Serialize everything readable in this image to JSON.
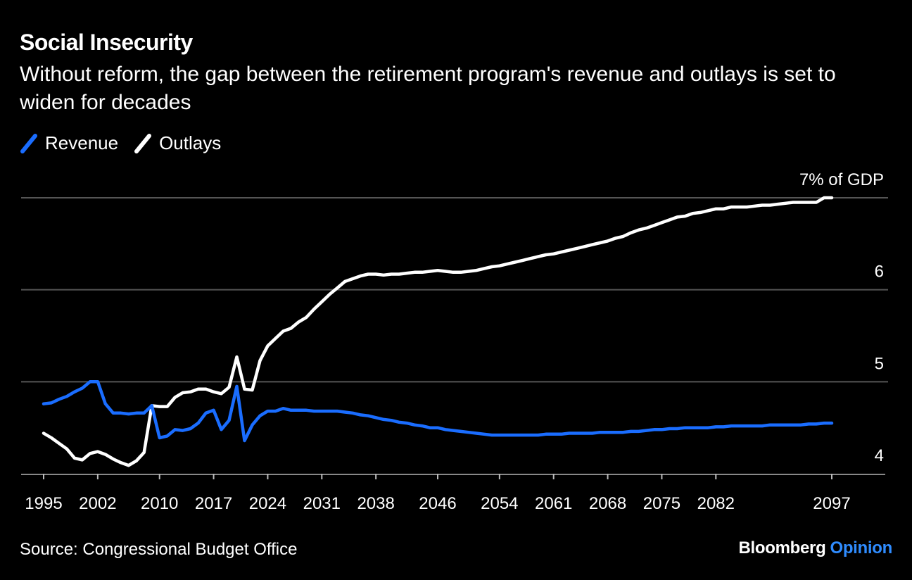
{
  "title": "Social Insecurity",
  "subtitle": "Without reform, the gap between the retirement program's revenue and outlays is set to widen for decades",
  "source": "Source: Congressional Budget Office",
  "brand": {
    "main": "Bloomberg",
    "sub": "Opinion"
  },
  "colors": {
    "background": "#000000",
    "revenue": "#1a6dff",
    "outlays": "#ffffff",
    "grid": "#555555",
    "brand_accent": "#2f8cff"
  },
  "chart_data": {
    "type": "line",
    "title": "Social Insecurity",
    "xlabel": "",
    "ylabel": "",
    "ylim": [
      4,
      7
    ],
    "y_ticks": [
      {
        "value": 4,
        "label": "4"
      },
      {
        "value": 5,
        "label": "5"
      },
      {
        "value": 6,
        "label": "6"
      },
      {
        "value": 7,
        "label": "7% of GDP"
      }
    ],
    "x_ticks": [
      "1995",
      "2002",
      "2010",
      "2017",
      "2024",
      "2031",
      "2038",
      "2046",
      "2054",
      "2061",
      "2068",
      "2075",
      "2082",
      "2097"
    ],
    "grid": true,
    "legend": "top-left",
    "series": [
      {
        "name": "Revenue",
        "color": "#1a6dff",
        "points": [
          [
            1995,
            4.76
          ],
          [
            1996,
            4.77
          ],
          [
            1997,
            4.81
          ],
          [
            1998,
            4.84
          ],
          [
            1999,
            4.89
          ],
          [
            2000,
            4.93
          ],
          [
            2001,
            5.0
          ],
          [
            2002,
            5.0
          ],
          [
            2003,
            4.76
          ],
          [
            2004,
            4.66
          ],
          [
            2005,
            4.66
          ],
          [
            2006,
            4.65
          ],
          [
            2007,
            4.66
          ],
          [
            2008,
            4.66
          ],
          [
            2009,
            4.74
          ],
          [
            2010,
            4.39
          ],
          [
            2011,
            4.41
          ],
          [
            2012,
            4.48
          ],
          [
            2013,
            4.47
          ],
          [
            2014,
            4.49
          ],
          [
            2015,
            4.55
          ],
          [
            2016,
            4.66
          ],
          [
            2017,
            4.69
          ],
          [
            2018,
            4.48
          ],
          [
            2019,
            4.58
          ],
          [
            2020,
            4.95
          ],
          [
            2021,
            4.36
          ],
          [
            2022,
            4.53
          ],
          [
            2023,
            4.63
          ],
          [
            2024,
            4.68
          ],
          [
            2025,
            4.68
          ],
          [
            2026,
            4.71
          ],
          [
            2027,
            4.69
          ],
          [
            2028,
            4.69
          ],
          [
            2029,
            4.69
          ],
          [
            2030,
            4.68
          ],
          [
            2031,
            4.68
          ],
          [
            2032,
            4.68
          ],
          [
            2033,
            4.68
          ],
          [
            2034,
            4.67
          ],
          [
            2035,
            4.66
          ],
          [
            2036,
            4.64
          ],
          [
            2037,
            4.63
          ],
          [
            2038,
            4.61
          ],
          [
            2039,
            4.59
          ],
          [
            2040,
            4.58
          ],
          [
            2041,
            4.56
          ],
          [
            2042,
            4.55
          ],
          [
            2043,
            4.53
          ],
          [
            2044,
            4.52
          ],
          [
            2045,
            4.5
          ],
          [
            2046,
            4.5
          ],
          [
            2047,
            4.48
          ],
          [
            2048,
            4.47
          ],
          [
            2049,
            4.46
          ],
          [
            2050,
            4.45
          ],
          [
            2051,
            4.44
          ],
          [
            2052,
            4.43
          ],
          [
            2053,
            4.42
          ],
          [
            2054,
            4.42
          ],
          [
            2055,
            4.42
          ],
          [
            2056,
            4.42
          ],
          [
            2057,
            4.42
          ],
          [
            2058,
            4.42
          ],
          [
            2059,
            4.42
          ],
          [
            2060,
            4.43
          ],
          [
            2061,
            4.43
          ],
          [
            2062,
            4.43
          ],
          [
            2063,
            4.44
          ],
          [
            2064,
            4.44
          ],
          [
            2065,
            4.44
          ],
          [
            2066,
            4.44
          ],
          [
            2067,
            4.45
          ],
          [
            2068,
            4.45
          ],
          [
            2069,
            4.45
          ],
          [
            2070,
            4.45
          ],
          [
            2071,
            4.46
          ],
          [
            2072,
            4.46
          ],
          [
            2073,
            4.47
          ],
          [
            2074,
            4.48
          ],
          [
            2075,
            4.48
          ],
          [
            2076,
            4.49
          ],
          [
            2077,
            4.49
          ],
          [
            2078,
            4.5
          ],
          [
            2079,
            4.5
          ],
          [
            2080,
            4.5
          ],
          [
            2081,
            4.5
          ],
          [
            2082,
            4.51
          ],
          [
            2083,
            4.51
          ],
          [
            2084,
            4.52
          ],
          [
            2085,
            4.52
          ],
          [
            2086,
            4.52
          ],
          [
            2087,
            4.52
          ],
          [
            2088,
            4.52
          ],
          [
            2089,
            4.53
          ],
          [
            2090,
            4.53
          ],
          [
            2091,
            4.53
          ],
          [
            2092,
            4.53
          ],
          [
            2093,
            4.53
          ],
          [
            2094,
            4.54
          ],
          [
            2095,
            4.54
          ],
          [
            2096,
            4.55
          ],
          [
            2097,
            4.55
          ]
        ]
      },
      {
        "name": "Outlays",
        "color": "#ffffff",
        "points": [
          [
            1995,
            4.44
          ],
          [
            1996,
            4.39
          ],
          [
            1997,
            4.33
          ],
          [
            1998,
            4.27
          ],
          [
            1999,
            4.17
          ],
          [
            2000,
            4.15
          ],
          [
            2001,
            4.22
          ],
          [
            2002,
            4.24
          ],
          [
            2003,
            4.21
          ],
          [
            2004,
            4.16
          ],
          [
            2005,
            4.12
          ],
          [
            2006,
            4.09
          ],
          [
            2007,
            4.14
          ],
          [
            2008,
            4.23
          ],
          [
            2009,
            4.74
          ],
          [
            2010,
            4.73
          ],
          [
            2011,
            4.73
          ],
          [
            2012,
            4.83
          ],
          [
            2013,
            4.88
          ],
          [
            2014,
            4.89
          ],
          [
            2015,
            4.92
          ],
          [
            2016,
            4.92
          ],
          [
            2017,
            4.89
          ],
          [
            2018,
            4.87
          ],
          [
            2019,
            4.94
          ],
          [
            2020,
            5.27
          ],
          [
            2021,
            4.92
          ],
          [
            2022,
            4.91
          ],
          [
            2023,
            5.23
          ],
          [
            2024,
            5.39
          ],
          [
            2025,
            5.47
          ],
          [
            2026,
            5.55
          ],
          [
            2027,
            5.58
          ],
          [
            2028,
            5.65
          ],
          [
            2029,
            5.7
          ],
          [
            2030,
            5.79
          ],
          [
            2031,
            5.87
          ],
          [
            2032,
            5.95
          ],
          [
            2033,
            6.02
          ],
          [
            2034,
            6.09
          ],
          [
            2035,
            6.12
          ],
          [
            2036,
            6.15
          ],
          [
            2037,
            6.17
          ],
          [
            2038,
            6.17
          ],
          [
            2039,
            6.16
          ],
          [
            2040,
            6.17
          ],
          [
            2041,
            6.17
          ],
          [
            2042,
            6.18
          ],
          [
            2043,
            6.19
          ],
          [
            2044,
            6.19
          ],
          [
            2045,
            6.2
          ],
          [
            2046,
            6.21
          ],
          [
            2047,
            6.2
          ],
          [
            2048,
            6.19
          ],
          [
            2049,
            6.19
          ],
          [
            2050,
            6.2
          ],
          [
            2051,
            6.21
          ],
          [
            2052,
            6.23
          ],
          [
            2053,
            6.25
          ],
          [
            2054,
            6.26
          ],
          [
            2055,
            6.28
          ],
          [
            2056,
            6.3
          ],
          [
            2057,
            6.32
          ],
          [
            2058,
            6.34
          ],
          [
            2059,
            6.36
          ],
          [
            2060,
            6.38
          ],
          [
            2061,
            6.39
          ],
          [
            2062,
            6.41
          ],
          [
            2063,
            6.43
          ],
          [
            2064,
            6.45
          ],
          [
            2065,
            6.47
          ],
          [
            2066,
            6.49
          ],
          [
            2067,
            6.51
          ],
          [
            2068,
            6.53
          ],
          [
            2069,
            6.56
          ],
          [
            2070,
            6.58
          ],
          [
            2071,
            6.62
          ],
          [
            2072,
            6.65
          ],
          [
            2073,
            6.67
          ],
          [
            2074,
            6.7
          ],
          [
            2075,
            6.73
          ],
          [
            2076,
            6.76
          ],
          [
            2077,
            6.79
          ],
          [
            2078,
            6.8
          ],
          [
            2079,
            6.83
          ],
          [
            2080,
            6.84
          ],
          [
            2081,
            6.86
          ],
          [
            2082,
            6.88
          ],
          [
            2083,
            6.88
          ],
          [
            2084,
            6.9
          ],
          [
            2085,
            6.9
          ],
          [
            2086,
            6.9
          ],
          [
            2087,
            6.91
          ],
          [
            2088,
            6.92
          ],
          [
            2089,
            6.92
          ],
          [
            2090,
            6.93
          ],
          [
            2091,
            6.94
          ],
          [
            2092,
            6.95
          ],
          [
            2093,
            6.95
          ],
          [
            2094,
            6.95
          ],
          [
            2095,
            6.95
          ],
          [
            2096,
            7.0
          ],
          [
            2097,
            7.0
          ]
        ]
      }
    ]
  }
}
